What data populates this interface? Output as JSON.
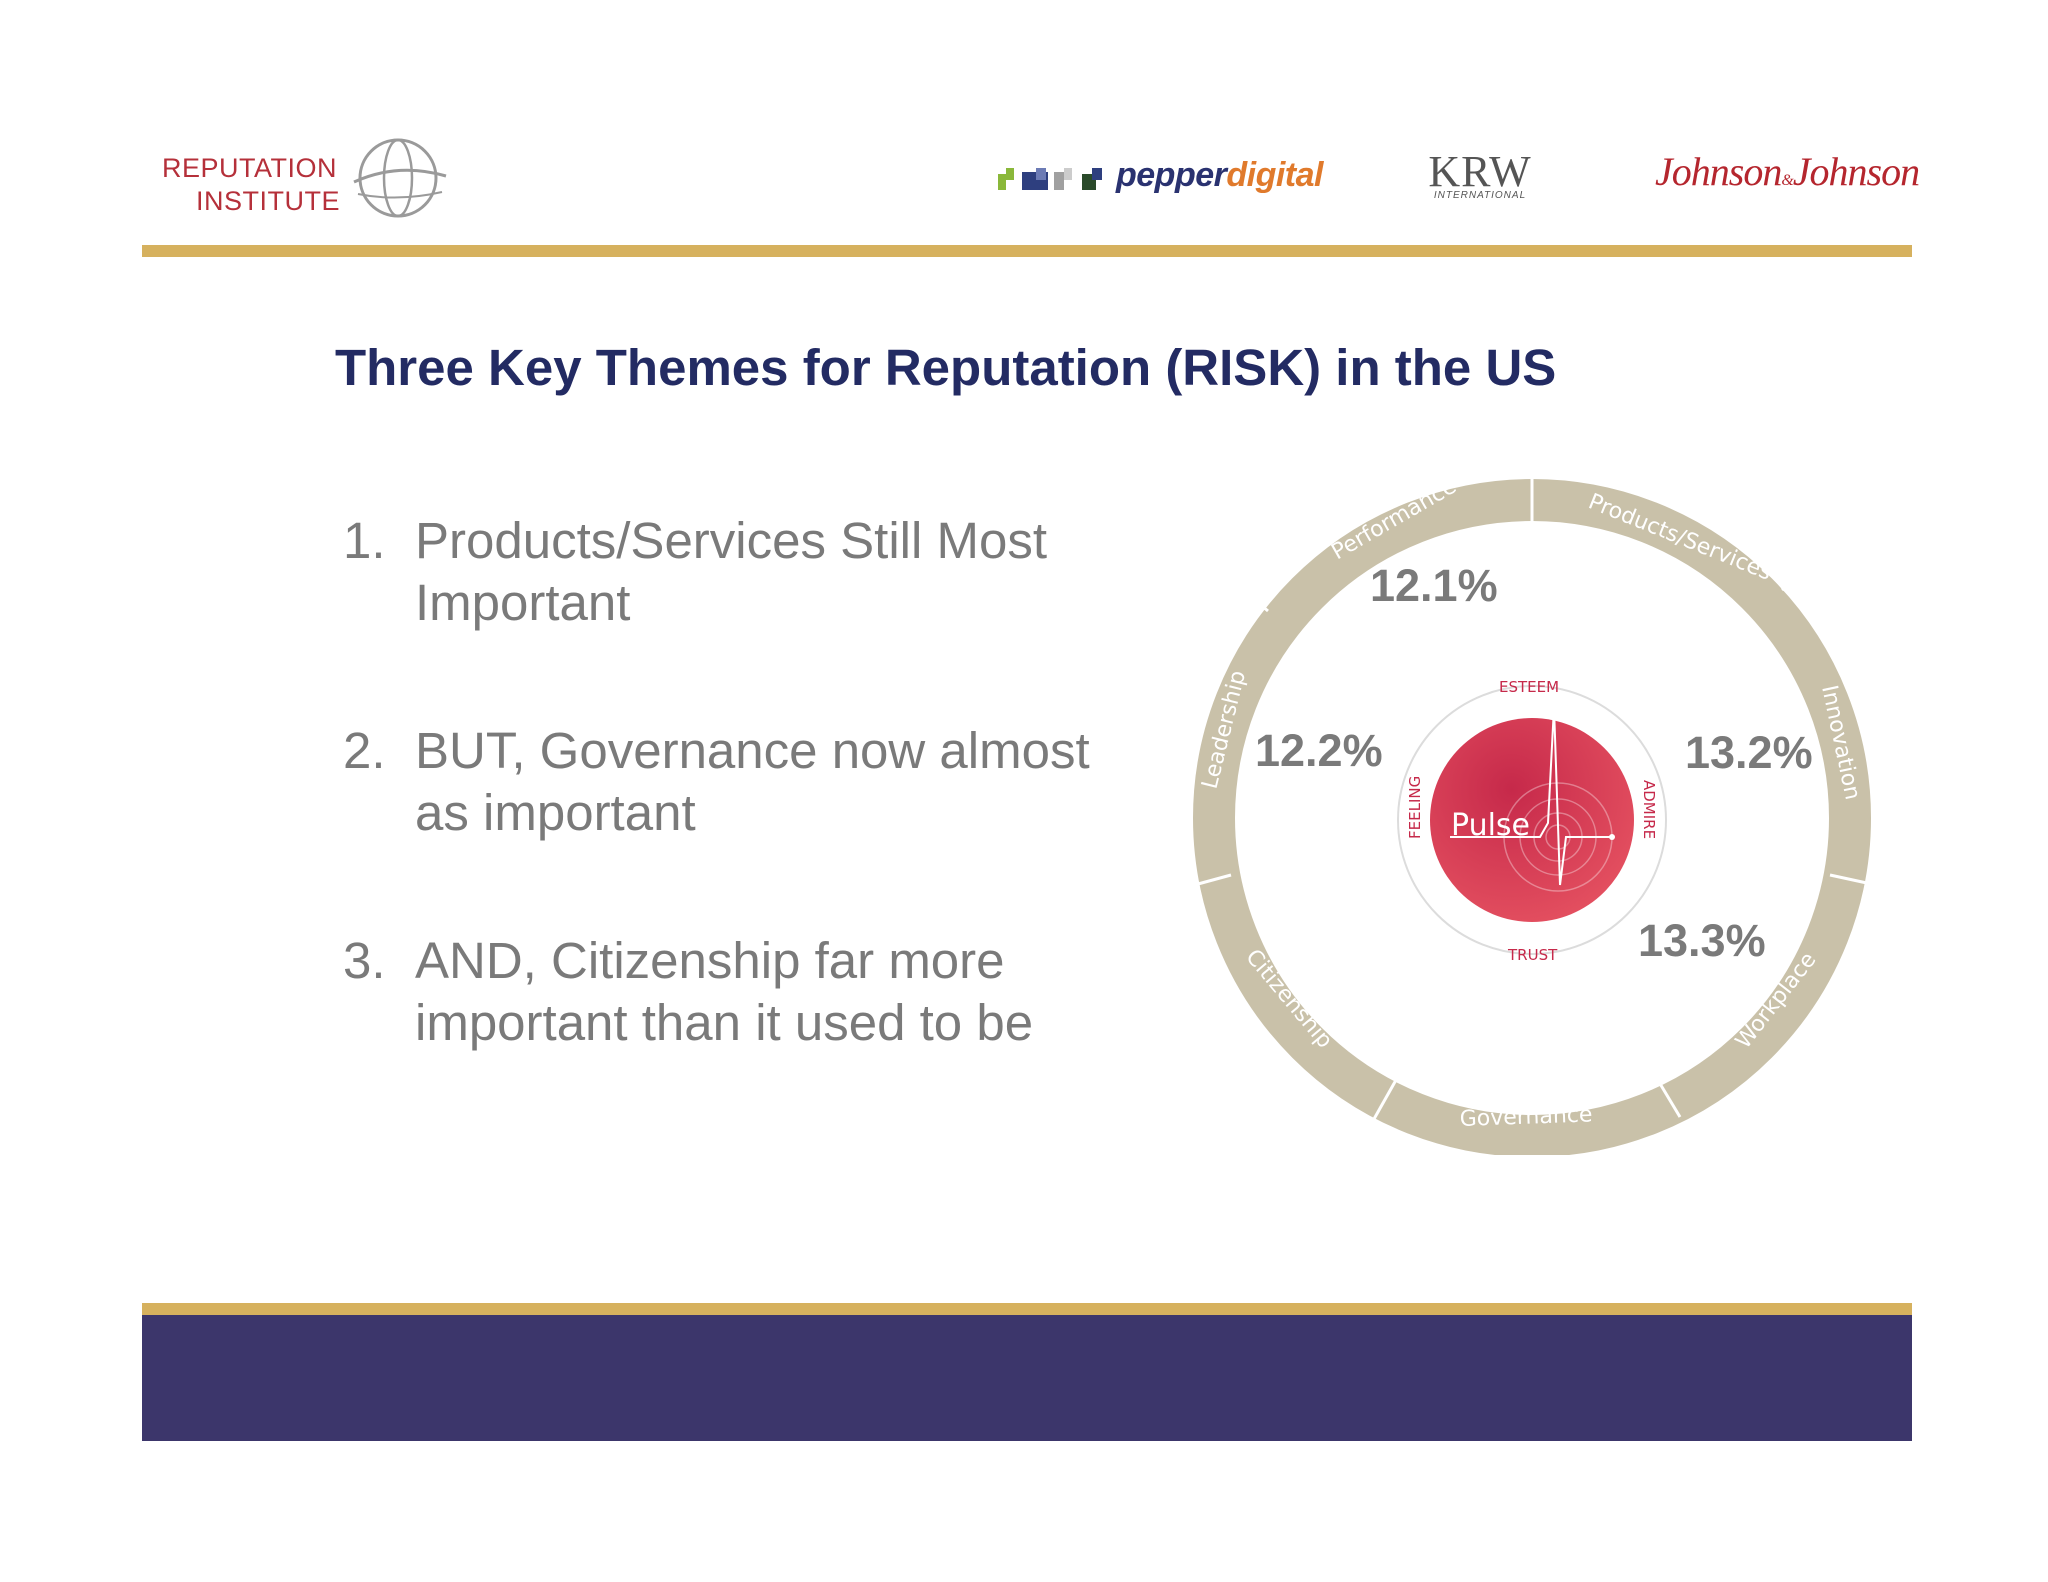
{
  "header": {
    "reputation_institute": {
      "line1": "Reputation",
      "line2": "Institute",
      "icon": "globe-icon"
    },
    "pepperdigital": {
      "part1": "pepper",
      "part2": "digital"
    },
    "krw": {
      "main": "KRW",
      "sub": "INTERNATIONAL"
    },
    "jnj": {
      "left": "Johnson",
      "amp": "&",
      "right": "Johnson"
    }
  },
  "slide": {
    "title": "Three Key Themes for Reputation (RISK) in the US",
    "points": [
      {
        "num": "1.",
        "text": "Products/Services Still Most Important"
      },
      {
        "num": "2.",
        "text": "BUT, Governance now almost as important"
      },
      {
        "num": "3.",
        "text": "AND, Citizenship far more important than it used to be"
      }
    ]
  },
  "diagram": {
    "ring_segments": [
      "Products/Services",
      "Innovation",
      "Workplace",
      "Governance",
      "Citizenship",
      "Leadership",
      "Performance"
    ],
    "center": {
      "label": "Pulse",
      "top": "ESTEEM",
      "right": "ADMIRE",
      "bottom": "TRUST",
      "left": "FEELING"
    },
    "percentages": {
      "performance": "12.1%",
      "leadership": "12.2%",
      "innovation": "13.2%",
      "workplace": "13.3%"
    }
  },
  "colors": {
    "title": "#232b63",
    "gold": "#d6b15e",
    "footer": "#3c366b",
    "ring": "#c9c1a9",
    "pulse": "#d03a52"
  }
}
